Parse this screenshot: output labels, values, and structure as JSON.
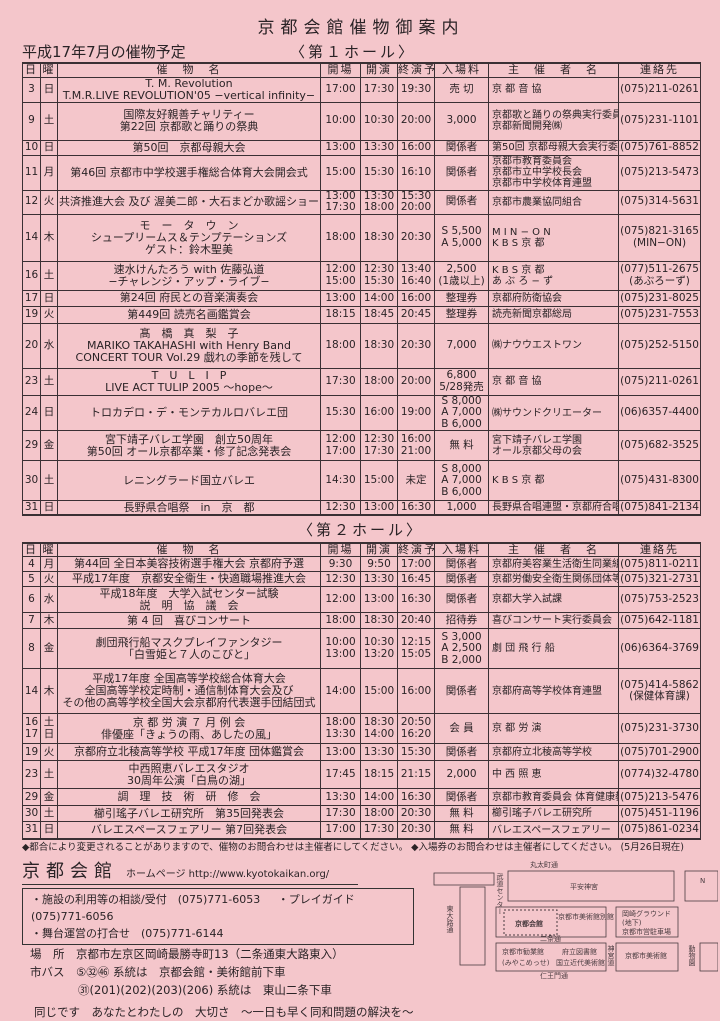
{
  "title": "京都会館催物御案内",
  "subtitle": "平成17年7月の催物予定",
  "hall1_label": "〈第１ホール〉",
  "hall2_label": "〈第２ホール〉",
  "headers": [
    "日",
    "曜",
    "催　物　名",
    "開場",
    "開演",
    "終演予定",
    "入場料",
    "主　催　者　名",
    "連絡先"
  ],
  "hall1": [
    {
      "day": [
        "3"
      ],
      "wd": [
        "日"
      ],
      "title": [
        "T. M. Revolution",
        "T.M.R.LIVE REVOLUTION'05 −vertical infinity−"
      ],
      "open": [
        "17:00"
      ],
      "start": [
        "17:30"
      ],
      "end": [
        "19:30"
      ],
      "fee": [
        "売 切"
      ],
      "org": [
        "京 都 音 協"
      ],
      "tel": [
        "(075)211-0261"
      ]
    },
    {
      "day": [
        "9"
      ],
      "wd": [
        "土"
      ],
      "title": [
        "国際友好親善チャリティー",
        "第22回 京都歌と踊りの祭典"
      ],
      "open": [
        "10:00"
      ],
      "start": [
        "10:30"
      ],
      "end": [
        "20:00"
      ],
      "fee": [
        "3,000"
      ],
      "org": [
        "京都歌と踊りの祭典実行委員会",
        "京都新聞開発㈱"
      ],
      "tel": [
        "(075)231-1101"
      ]
    },
    {
      "day": [
        "10"
      ],
      "wd": [
        "日"
      ],
      "title": [
        "第50回　京都母親大会"
      ],
      "open": [
        "13:00"
      ],
      "start": [
        "13:30"
      ],
      "end": [
        "16:00"
      ],
      "fee": [
        "関係者"
      ],
      "org": [
        "第50回 京都母親大会実行委員会"
      ],
      "tel": [
        "(075)761-8852"
      ]
    },
    {
      "day": [
        "11"
      ],
      "wd": [
        "月"
      ],
      "title": [
        "第46回 京都市中学校選手権総合体育大会開会式"
      ],
      "open": [
        "15:00"
      ],
      "start": [
        "15:30"
      ],
      "end": [
        "16:10"
      ],
      "fee": [
        "関係者"
      ],
      "org": [
        "京都市教育委員会",
        "京都市立中学校長会",
        "京都市中学校体育連盟"
      ],
      "tel": [
        "(075)213-5473"
      ]
    },
    {
      "day": [
        "12"
      ],
      "wd": [
        "火"
      ],
      "title": [
        "共済推進大会 及び 渥美二郎・大石まどか歌謡ショー"
      ],
      "open": [
        "13:00",
        "17:30"
      ],
      "start": [
        "13:30",
        "18:00"
      ],
      "end": [
        "15:30",
        "20:00"
      ],
      "fee": [
        "関係者"
      ],
      "org": [
        "京都市農業協同組合"
      ],
      "tel": [
        "(075)314-5631"
      ]
    },
    {
      "day": [
        "14"
      ],
      "wd": [
        "木"
      ],
      "title": [
        "モ　ー　タ　ウ　ン",
        "シュープリームス＆テンプテーションズ",
        "ゲスト：鈴木聖美"
      ],
      "open": [
        "18:00"
      ],
      "start": [
        "18:30"
      ],
      "end": [
        "20:30"
      ],
      "fee": [
        "S 5,500",
        "A 5,000"
      ],
      "org": [
        "M I N − O N",
        "K B S 京 都"
      ],
      "tel": [
        "(075)821-3165",
        "(MIN−ON)"
      ]
    },
    {
      "day": [
        "16"
      ],
      "wd": [
        "土"
      ],
      "title": [
        "速水けんたろう with 佐藤弘道",
        "−チャレンジ・アップ・ライブ−"
      ],
      "open": [
        "12:00",
        "15:00"
      ],
      "start": [
        "12:30",
        "15:30"
      ],
      "end": [
        "13:40",
        "16:40"
      ],
      "fee": [
        "2,500",
        "(1歳以上)"
      ],
      "org": [
        "K B S 京 都",
        "あ ぶ ろ − ず"
      ],
      "tel": [
        "(077)511-2675",
        "(あぶろーず)"
      ]
    },
    {
      "day": [
        "17"
      ],
      "wd": [
        "日"
      ],
      "title": [
        "第24回 府民との音楽演奏会"
      ],
      "open": [
        "13:00"
      ],
      "start": [
        "14:00"
      ],
      "end": [
        "16:00"
      ],
      "fee": [
        "整理券"
      ],
      "org": [
        "京都府防衛協会"
      ],
      "tel": [
        "(075)231-8025"
      ]
    },
    {
      "day": [
        "19"
      ],
      "wd": [
        "火"
      ],
      "title": [
        "第449回 読売名画鑑賞会"
      ],
      "open": [
        "18:15"
      ],
      "start": [
        "18:45"
      ],
      "end": [
        "20:45"
      ],
      "fee": [
        "整理券"
      ],
      "org": [
        "読売新聞京都総局"
      ],
      "tel": [
        "(075)231-7553"
      ]
    },
    {
      "day": [
        "20"
      ],
      "wd": [
        "水"
      ],
      "title": [
        "髙　橋　真　梨　子",
        "MARIKO TAKAHASHI with Henry Band",
        "CONCERT TOUR Vol.29 戯れの季節を残して"
      ],
      "open": [
        "18:00"
      ],
      "start": [
        "18:30"
      ],
      "end": [
        "20:30"
      ],
      "fee": [
        "7,000"
      ],
      "org": [
        "㈱ナウウエストワン"
      ],
      "tel": [
        "(075)252-5150"
      ]
    },
    {
      "day": [
        "23"
      ],
      "wd": [
        "土"
      ],
      "title": [
        "T　U　L　I　P",
        "LIVE ACT TULIP 2005 ～hope～"
      ],
      "open": [
        "17:30"
      ],
      "start": [
        "18:00"
      ],
      "end": [
        "20:00"
      ],
      "fee": [
        "6,800",
        "5/28発売"
      ],
      "org": [
        "京 都 音 協"
      ],
      "tel": [
        "(075)211-0261"
      ]
    },
    {
      "day": [
        "24"
      ],
      "wd": [
        "日"
      ],
      "title": [
        "トロカデロ・デ・モンテカルロバレエ団"
      ],
      "open": [
        "15:30"
      ],
      "start": [
        "16:00"
      ],
      "end": [
        "19:00"
      ],
      "fee": [
        "S 8,000",
        "A 7,000",
        "B 6,000"
      ],
      "org": [
        "㈱サウンドクリエーター"
      ],
      "tel": [
        "(06)6357-4400"
      ]
    },
    {
      "day": [
        "29"
      ],
      "wd": [
        "金"
      ],
      "title": [
        "宮下靖子バレエ学園　創立50周年",
        "第50回 オール京都卒業・修了記念発表会"
      ],
      "open": [
        "12:00",
        "17:00"
      ],
      "start": [
        "12:30",
        "17:30"
      ],
      "end": [
        "16:00",
        "21:00"
      ],
      "fee": [
        "無 料"
      ],
      "org": [
        "宮下靖子バレエ学園",
        "オール京都父母の会"
      ],
      "tel": [
        "(075)682-3525"
      ]
    },
    {
      "day": [
        "30"
      ],
      "wd": [
        "土"
      ],
      "title": [
        "レニングラード国立バレエ"
      ],
      "open": [
        "14:30"
      ],
      "start": [
        "15:00"
      ],
      "end": [
        "未定"
      ],
      "fee": [
        "S 8,000",
        "A 7,000",
        "B 6,000"
      ],
      "org": [
        "K B S 京 都"
      ],
      "tel": [
        "(075)431-8300"
      ]
    },
    {
      "day": [
        "31"
      ],
      "wd": [
        "日"
      ],
      "title": [
        "長野県合唱祭　in　京　都"
      ],
      "open": [
        "12:30"
      ],
      "start": [
        "13:00"
      ],
      "end": [
        "16:30"
      ],
      "fee": [
        "1,000"
      ],
      "org": [
        "長野県合唱連盟・京都府合唱連盟"
      ],
      "tel": [
        "(075)841-2134"
      ]
    }
  ],
  "hall2": [
    {
      "day": [
        "4"
      ],
      "wd": [
        "月"
      ],
      "title": [
        "第44回 全日本美容技術選手権大会 京都府予選"
      ],
      "open": [
        "9:30"
      ],
      "start": [
        "9:50"
      ],
      "end": [
        "17:00"
      ],
      "fee": [
        "関係者"
      ],
      "org": [
        "京都府美容業生活衛生同業組合"
      ],
      "tel": [
        "(075)811-0211"
      ]
    },
    {
      "day": [
        "5"
      ],
      "wd": [
        "火"
      ],
      "title": [
        "平成17年度　京都安全衛生・快適職場推進大会"
      ],
      "open": [
        "12:30"
      ],
      "start": [
        "13:30"
      ],
      "end": [
        "16:45"
      ],
      "fee": [
        "関係者"
      ],
      "org": [
        "京都労働安全衛生関係団体等連絡協議会"
      ],
      "tel": [
        "(075)321-2731"
      ]
    },
    {
      "day": [
        "6"
      ],
      "wd": [
        "水"
      ],
      "title": [
        "平成18年度　大学入試センター試験",
        "説　明　協　議　会"
      ],
      "open": [
        "12:00"
      ],
      "start": [
        "13:00"
      ],
      "end": [
        "16:30"
      ],
      "fee": [
        "関係者"
      ],
      "org": [
        "京都大学入試課"
      ],
      "tel": [
        "(075)753-2523"
      ]
    },
    {
      "day": [
        "7"
      ],
      "wd": [
        "木"
      ],
      "title": [
        "第 4 回　喜びコンサート"
      ],
      "open": [
        "18:00"
      ],
      "start": [
        "18:30"
      ],
      "end": [
        "20:40"
      ],
      "fee": [
        "招待券"
      ],
      "org": [
        "喜びコンサート実行委員会"
      ],
      "tel": [
        "(075)642-1181"
      ]
    },
    {
      "day": [
        "8"
      ],
      "wd": [
        "金"
      ],
      "title": [
        "劇団飛行船マスクプレイファンタジー",
        "「白雪姫と７人のこびと」"
      ],
      "open": [
        "10:00",
        "13:00"
      ],
      "start": [
        "10:30",
        "13:20"
      ],
      "end": [
        "12:15",
        "15:05"
      ],
      "fee": [
        "S 3,000",
        "A 2,500",
        "B 2,000"
      ],
      "org": [
        "劇 団 飛 行 船"
      ],
      "tel": [
        "(06)6364-3769"
      ]
    },
    {
      "day": [
        "14"
      ],
      "wd": [
        "木"
      ],
      "title": [
        "平成17年度 全国高等学校総合体育大会",
        "全国高等学校定時制・通信制体育大会及び",
        "その他の高等学校全国大会京都府代表選手団結団式"
      ],
      "open": [
        "14:00"
      ],
      "start": [
        "15:00"
      ],
      "end": [
        "16:00"
      ],
      "fee": [
        "関係者"
      ],
      "org": [
        "京都府高等学校体育連盟"
      ],
      "tel": [
        "(075)414-5862",
        "(保健体育課)"
      ]
    },
    {
      "day": [
        "16",
        "17"
      ],
      "wd": [
        "土",
        "日"
      ],
      "title": [
        "京 都 労 演 ７ 月 例 会",
        "俳優座「きょうの雨、あしたの風」"
      ],
      "open": [
        "18:00",
        "13:30"
      ],
      "start": [
        "18:30",
        "14:00"
      ],
      "end": [
        "20:50",
        "16:20"
      ],
      "fee": [
        "会 員"
      ],
      "org": [
        "京 都 労 演"
      ],
      "tel": [
        "(075)231-3730"
      ]
    },
    {
      "day": [
        "19"
      ],
      "wd": [
        "火"
      ],
      "title": [
        "京都府立北稜高等学校 平成17年度 団体鑑賞会"
      ],
      "open": [
        "13:00"
      ],
      "start": [
        "13:30"
      ],
      "end": [
        "15:30"
      ],
      "fee": [
        "関係者"
      ],
      "org": [
        "京都府立北稜高等学校"
      ],
      "tel": [
        "(075)701-2900"
      ]
    },
    {
      "day": [
        "23"
      ],
      "wd": [
        "土"
      ],
      "title": [
        "中西照恵バレエスタジオ",
        "30周年公演「白鳥の湖」"
      ],
      "open": [
        "17:45"
      ],
      "start": [
        "18:15"
      ],
      "end": [
        "21:15"
      ],
      "fee": [
        "2,000"
      ],
      "org": [
        "中 西 照 恵"
      ],
      "tel": [
        "(0774)32-4780"
      ]
    },
    {
      "day": [
        "29"
      ],
      "wd": [
        "金"
      ],
      "title": [
        "調　理　技　術　研　修　会"
      ],
      "open": [
        "13:30"
      ],
      "start": [
        "14:00"
      ],
      "end": [
        "16:30"
      ],
      "fee": [
        "関係者"
      ],
      "org": [
        "京都市教育委員会 体育健康教育室"
      ],
      "tel": [
        "(075)213-5476"
      ]
    },
    {
      "day": [
        "30"
      ],
      "wd": [
        "土"
      ],
      "title": [
        "櫛引瑤子バレエ研究所　第35回発表会"
      ],
      "open": [
        "17:30"
      ],
      "start": [
        "18:00"
      ],
      "end": [
        "20:30"
      ],
      "fee": [
        "無 料"
      ],
      "org": [
        "櫛引瑤子バレエ研究所"
      ],
      "tel": [
        "(075)451-1196"
      ]
    },
    {
      "day": [
        "31"
      ],
      "wd": [
        "日"
      ],
      "title": [
        "バレエスペースフェアリー 第7回発表会"
      ],
      "open": [
        "17:00"
      ],
      "start": [
        "17:30"
      ],
      "end": [
        "20:30"
      ],
      "fee": [
        "無 料"
      ],
      "org": [
        "バレエスペースフェアリー"
      ],
      "tel": [
        "(075)861-0234"
      ]
    }
  ],
  "note": "◆都合により変更されることがありますので、催物のお問合わせは主催者にしてください。 ◆入場券のお問合わせは主催者にしてください。 (5月26日現在)",
  "footer": {
    "kaikan": "京都会館",
    "homepage": "ホームページ http://www.kyotokaikan.org/",
    "contact1": "・施設の利用等の相談/受付　(075)771-6053",
    "contact2": "・プレイガイド(075)771-6056",
    "contact3": "・舞台運営の打合せ　(075)771-6144",
    "place": "場　所　京都市左京区岡崎最勝寺町13（二条通東大路東入）",
    "bus1": "市バス　⑤㉜㊻ 系統は　京都会館・美術館前下車",
    "bus2": "㉛(201)(202)(203)(206) 系統は　東山二条下車",
    "slogan": "同じです　あなたとわたしの　大切さ　～一日も早く同和問題の解決を～"
  },
  "map": {
    "labels": [
      "丸太町通",
      "平安神宮",
      "武道センター",
      "東大路通",
      "京都会館",
      "京都市美術館別館",
      "神宮道",
      "岡崎グラウンド",
      "(地下)",
      "京都市営駐車場",
      "二条通",
      "京都市勧業館",
      "(みやこめっせ)",
      "府立図書館",
      "国立近代美術館",
      "京都市美術館",
      "動物園",
      "仁王門通",
      "N"
    ]
  }
}
